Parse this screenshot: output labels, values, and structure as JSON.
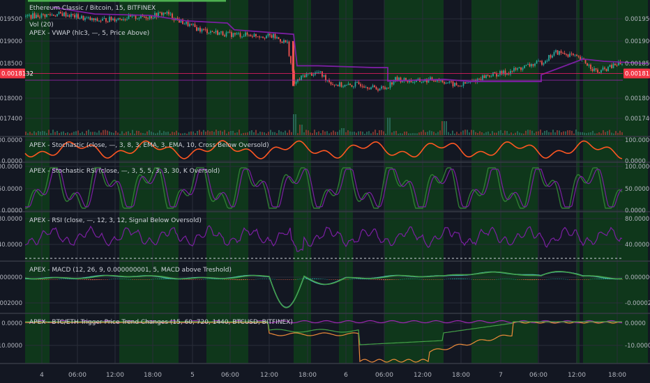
{
  "colors": {
    "background": "#131722",
    "grid": "#2a2e39",
    "axis_text": "#b2b5be",
    "legend_text": "#d1d4dc",
    "up": "#26a69a",
    "down": "#ef5350",
    "vwap": "#7b1fa2",
    "green_zone": "#0f3d1a",
    "price_line": "#e91e63",
    "price_badge": "#f23645",
    "stoch": "#ff5722",
    "stoch_rsi_k": "#2e7d32",
    "stoch_rsi_d": "#7b1fa2",
    "rsi": "#7b1fa2",
    "macd": "#4db6ac",
    "signal": "#43a047",
    "hist_pos": "#e0654a",
    "trend_green": "#43a047",
    "trend_orange": "#ef8c3a",
    "trend_purple": "#9c27b0"
  },
  "chart_data": [
    {
      "type": "candlestick",
      "title": "Ethereum Classic / Bitcoin, 15, BITFINEX",
      "legend": [
        "Vol (20)",
        "APEX - VWAP (hlc3, —, 5, Price Above)"
      ],
      "y_ticks": [
        "0.0019500",
        "0.0019000",
        "0.0018500",
        "0.0018000",
        "0.0017400"
      ],
      "last_price": "0.0018132",
      "ylim": [
        0.00171,
        0.00197
      ],
      "anchors": [
        [
          0,
          0.00194
        ],
        [
          55,
          0.001945
        ],
        [
          100,
          0.00193
        ],
        [
          130,
          0.001935
        ],
        [
          180,
          0.00194
        ],
        [
          200,
          0.001948
        ],
        [
          220,
          0.00193
        ],
        [
          250,
          0.00191
        ],
        [
          290,
          0.0019
        ],
        [
          330,
          0.001898
        ],
        [
          355,
          0.001895
        ],
        [
          375,
          0.00188
        ],
        [
          385,
          0.00179
        ],
        [
          400,
          0.00181
        ],
        [
          420,
          0.001815
        ],
        [
          440,
          0.00179
        ],
        [
          460,
          0.001785
        ],
        [
          480,
          0.00179
        ],
        [
          500,
          0.00178
        ],
        [
          515,
          0.00178
        ],
        [
          530,
          0.0018
        ],
        [
          560,
          0.001795
        ],
        [
          590,
          0.0018
        ],
        [
          620,
          0.001785
        ],
        [
          640,
          0.001795
        ],
        [
          660,
          0.001808
        ],
        [
          690,
          0.001815
        ],
        [
          720,
          0.00183
        ],
        [
          740,
          0.001838
        ],
        [
          760,
          0.00186
        ],
        [
          780,
          0.001855
        ],
        [
          800,
          0.00184
        ],
        [
          820,
          0.001815
        ],
        [
          850,
          0.001835
        ],
        [
          870,
          0.001825
        ],
        [
          893,
          0.001813
        ]
      ],
      "vwap": [
        [
          40,
          0.00196
        ],
        [
          60,
          0.001955
        ],
        [
          100,
          0.001945
        ],
        [
          180,
          0.001942
        ],
        [
          230,
          0.00193
        ],
        [
          290,
          0.001925
        ],
        [
          300,
          0.00191
        ],
        [
          385,
          0.0019
        ],
        [
          390,
          0.00183
        ],
        [
          420,
          0.00183
        ],
        [
          460,
          0.001828
        ],
        [
          500,
          0.001826
        ],
        [
          520,
          0.001826
        ],
        [
          520,
          0.001796
        ],
        [
          600,
          0.0018
        ],
        [
          640,
          0.001795
        ],
        [
          740,
          0.001795
        ],
        [
          740,
          0.00181
        ],
        [
          800,
          0.001845
        ],
        [
          830,
          0.00184
        ],
        [
          893,
          0.001835
        ]
      ],
      "horizontal_levels": [
        0.001813,
        0.001798
      ],
      "green_zones": [
        [
          0,
          35
        ],
        [
          135,
          220
        ],
        [
          260,
          320
        ],
        [
          385,
          410
        ],
        [
          450,
          470
        ],
        [
          515,
          600
        ],
        [
          640,
          735
        ],
        [
          790,
          795
        ],
        [
          800,
          893
        ]
      ],
      "volume_spikes": [
        [
          385,
          0.3
        ],
        [
          520,
          0.25
        ],
        [
          600,
          0.2
        ],
        [
          395,
          0.15
        ],
        [
          455,
          0.1
        ]
      ]
    },
    {
      "type": "line",
      "title": "APEX - Stochastic (close, —, 3, 8, 3, EMA, 3, EMA, 10, Cross Below Oversold)",
      "y_ticks": [
        "100.0000",
        "0.0000"
      ],
      "ylim": [
        0,
        100
      ]
    },
    {
      "type": "line",
      "title": "APEX - Stochastic RSI (close, —, 3, 5, 5, 3, 3, 30, K Oversold)",
      "y_ticks": [
        "100.0000",
        "50.0000",
        "0.0000"
      ],
      "ylim": [
        0,
        100
      ]
    },
    {
      "type": "line",
      "title": "APEX - RSI (close, —, 12, 3, 12, Signal Below Oversold)",
      "y_ticks": [
        "80.0000",
        "40.0000"
      ],
      "ylim": [
        20,
        85
      ]
    },
    {
      "type": "line",
      "title": "APEX - MACD (12, 26, 9, 0.000000001, 5, MACD above Treshold)",
      "y_ticks": [
        "0.00000000",
        "-0.00002000"
      ],
      "ylim": [
        -2.4e-05,
        5e-06
      ]
    },
    {
      "type": "line",
      "title": "APEX - BTC/ETH Trigger Price Trend Changes (15, 60, 720, 1440, BTCUSD, BITFINEX)",
      "y_ticks": [
        "0.0000",
        "-10.0000"
      ],
      "ylim": [
        -15,
        1
      ]
    }
  ],
  "x_axis": {
    "labels": [
      "4",
      "06:00",
      "12:00",
      "18:00",
      "5",
      "06:00",
      "12:00",
      "18:00",
      "6",
      "06:00",
      "12:00",
      "18:00",
      "7",
      "06:00",
      "12:00",
      "18:00"
    ]
  }
}
